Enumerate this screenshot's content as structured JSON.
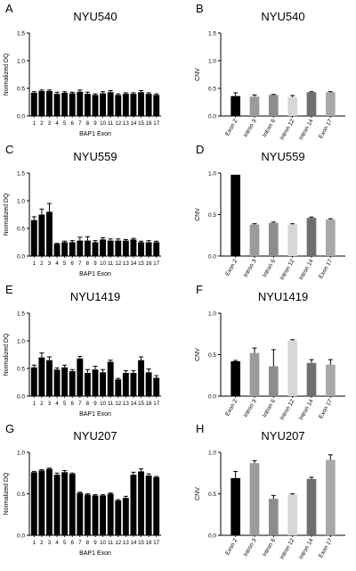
{
  "chart_data": [
    {
      "panel": "A",
      "type": "bar",
      "title": "NYU540",
      "xlabel": "BAP1 Exon",
      "ylabel": "Normalized DQ",
      "ylim": [
        0,
        1.5
      ],
      "yticks": [
        0.0,
        0.5,
        1.0,
        1.5
      ],
      "categories": [
        "1",
        "2",
        "3",
        "4",
        "5",
        "6",
        "7",
        "8",
        "9",
        "10",
        "11",
        "12",
        "13",
        "14",
        "15",
        "16",
        "17"
      ],
      "values": [
        0.42,
        0.45,
        0.45,
        0.4,
        0.42,
        0.41,
        0.44,
        0.4,
        0.38,
        0.41,
        0.43,
        0.38,
        0.4,
        0.4,
        0.43,
        0.4,
        0.38
      ],
      "errors": [
        0.02,
        0.02,
        0.02,
        0.03,
        0.02,
        0.02,
        0.03,
        0.03,
        0.02,
        0.03,
        0.03,
        0.02,
        0.02,
        0.02,
        0.03,
        0.02,
        0.02
      ],
      "bar_colors": [
        "#000000"
      ],
      "grid": false,
      "legend": "none"
    },
    {
      "panel": "B",
      "type": "bar",
      "title": "NYU540",
      "xlabel": "",
      "ylabel": "CNV",
      "ylim": [
        0,
        1.5
      ],
      "yticks": [
        0.0,
        0.5,
        1.0,
        1.5
      ],
      "categories": [
        "Exon 2",
        "Intron 3",
        "Intron 6",
        "Intron 12",
        "Intron 14",
        "Exon 17"
      ],
      "values": [
        0.36,
        0.35,
        0.38,
        0.34,
        0.43,
        0.43
      ],
      "errors": [
        0.06,
        0.03,
        0.01,
        0.03,
        0.01,
        0.01
      ],
      "bar_colors": [
        "#000000",
        "#9b9b9b",
        "#8c8c8c",
        "#d6d6d6",
        "#6e6e6e",
        "#a8a8a8"
      ],
      "grid": false,
      "legend": "none"
    },
    {
      "panel": "C",
      "type": "bar",
      "title": "NYU559",
      "xlabel": "BAP1 Exon",
      "ylabel": "Normalized DQ",
      "ylim": [
        0,
        1.5
      ],
      "yticks": [
        0.0,
        0.5,
        1.0,
        1.5
      ],
      "categories": [
        "1",
        "2",
        "3",
        "4",
        "5",
        "6",
        "7",
        "8",
        "9",
        "10",
        "11",
        "12",
        "13",
        "14",
        "15",
        "16",
        "17"
      ],
      "values": [
        0.65,
        0.75,
        0.8,
        0.22,
        0.25,
        0.25,
        0.28,
        0.28,
        0.25,
        0.3,
        0.28,
        0.28,
        0.28,
        0.3,
        0.25,
        0.25,
        0.25
      ],
      "errors": [
        0.06,
        0.1,
        0.15,
        0.01,
        0.02,
        0.03,
        0.06,
        0.07,
        0.03,
        0.03,
        0.03,
        0.03,
        0.02,
        0.02,
        0.02,
        0.03,
        0.02
      ],
      "bar_colors": [
        "#000000"
      ],
      "grid": false,
      "legend": "none"
    },
    {
      "panel": "D",
      "type": "bar",
      "title": "NYU559",
      "xlabel": "",
      "ylabel": "CNV",
      "ylim": [
        0,
        1.0
      ],
      "yticks": [
        0.0,
        0.5,
        1.0
      ],
      "categories": [
        "Exon 2",
        "Intron 3",
        "Intron 6",
        "Intron 12",
        "Intron 14",
        "Exon 17"
      ],
      "values": [
        0.98,
        0.38,
        0.4,
        0.38,
        0.46,
        0.44
      ],
      "errors": [
        0.0,
        0.01,
        0.01,
        0.01,
        0.01,
        0.01
      ],
      "bar_colors": [
        "#000000",
        "#9b9b9b",
        "#8c8c8c",
        "#d6d6d6",
        "#6e6e6e",
        "#a8a8a8"
      ],
      "grid": false,
      "legend": "none"
    },
    {
      "panel": "E",
      "type": "bar",
      "title": "NYU1419",
      "xlabel": "BAP1 Exon",
      "ylabel": "Normalized DQ",
      "ylim": [
        0,
        1.5
      ],
      "yticks": [
        0.0,
        0.5,
        1.0,
        1.5
      ],
      "categories": [
        "1",
        "2",
        "3",
        "4",
        "5",
        "6",
        "7",
        "8",
        "9",
        "10",
        "11",
        "12",
        "13",
        "14",
        "15",
        "16",
        "17"
      ],
      "values": [
        0.52,
        0.7,
        0.65,
        0.48,
        0.52,
        0.45,
        0.68,
        0.42,
        0.48,
        0.43,
        0.62,
        0.3,
        0.42,
        0.42,
        0.65,
        0.43,
        0.33
      ],
      "errors": [
        0.04,
        0.08,
        0.06,
        0.03,
        0.04,
        0.03,
        0.04,
        0.06,
        0.06,
        0.05,
        0.03,
        0.02,
        0.04,
        0.04,
        0.06,
        0.06,
        0.04
      ],
      "bar_colors": [
        "#000000"
      ],
      "grid": false,
      "legend": "none"
    },
    {
      "panel": "F",
      "type": "bar",
      "title": "NYU1419",
      "xlabel": "",
      "ylabel": "CNV",
      "ylim": [
        0,
        1.0
      ],
      "yticks": [
        0.0,
        0.5,
        1.0
      ],
      "categories": [
        "Exon 2",
        "Intron 3",
        "Intron 6",
        "Intron 12",
        "Intron 14",
        "Exon 17"
      ],
      "values": [
        0.42,
        0.52,
        0.36,
        0.67,
        0.4,
        0.38
      ],
      "errors": [
        0.01,
        0.06,
        0.2,
        0.01,
        0.04,
        0.06
      ],
      "bar_colors": [
        "#000000",
        "#9b9b9b",
        "#8c8c8c",
        "#d6d6d6",
        "#6e6e6e",
        "#a8a8a8"
      ],
      "grid": false,
      "legend": "none"
    },
    {
      "panel": "G",
      "type": "bar",
      "title": "NYU207",
      "xlabel": "BAP1 Exon",
      "ylabel": "Normalized DQ",
      "ylim": [
        0,
        1.0
      ],
      "yticks": [
        0.0,
        0.5,
        1.0
      ],
      "categories": [
        "1",
        "2",
        "3",
        "4",
        "5",
        "6",
        "7",
        "8",
        "9",
        "10",
        "11",
        "12",
        "13",
        "14",
        "15",
        "16",
        "17"
      ],
      "values": [
        0.76,
        0.78,
        0.8,
        0.73,
        0.76,
        0.74,
        0.51,
        0.49,
        0.48,
        0.48,
        0.5,
        0.42,
        0.45,
        0.73,
        0.77,
        0.72,
        0.7
      ],
      "errors": [
        0.01,
        0.01,
        0.01,
        0.02,
        0.02,
        0.01,
        0.01,
        0.01,
        0.01,
        0.01,
        0.01,
        0.01,
        0.02,
        0.03,
        0.03,
        0.02,
        0.01
      ],
      "bar_colors": [
        "#000000"
      ],
      "grid": false,
      "legend": "none"
    },
    {
      "panel": "H",
      "type": "bar",
      "title": "NYU207",
      "xlabel": "",
      "ylabel": "CNV",
      "ylim": [
        0,
        1.0
      ],
      "yticks": [
        0.0,
        0.5,
        1.0
      ],
      "categories": [
        "Exon 2",
        "Intron 3",
        "Intron 6",
        "Intron 12",
        "Intron 14",
        "Exon 17"
      ],
      "values": [
        0.69,
        0.87,
        0.44,
        0.49,
        0.68,
        0.91
      ],
      "errors": [
        0.08,
        0.03,
        0.04,
        0.01,
        0.02,
        0.06
      ],
      "bar_colors": [
        "#000000",
        "#9b9b9b",
        "#8c8c8c",
        "#d6d6d6",
        "#6e6e6e",
        "#a8a8a8"
      ],
      "grid": false,
      "legend": "none"
    }
  ]
}
